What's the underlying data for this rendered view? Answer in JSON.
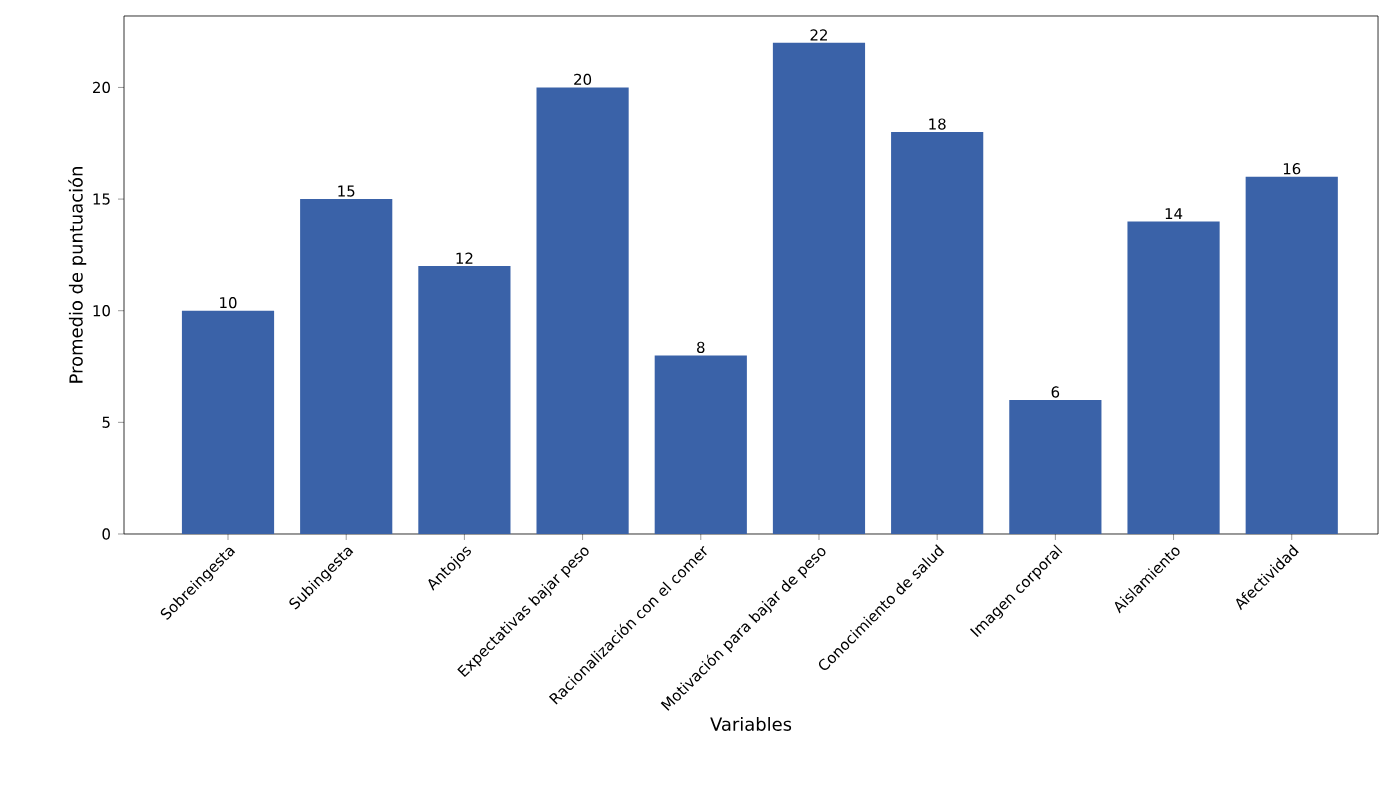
{
  "chart_data": {
    "type": "bar",
    "xlabel": "Variables",
    "ylabel": "Promedio de puntuación",
    "categories": [
      "Sobreingesta",
      "Subingesta",
      "Antojos",
      "Expectativas bajar peso",
      "Racionalización con el comer",
      "Motivación para bajar de peso",
      "Conocimiento de salud",
      "Imagen corporal",
      "Aislamiento",
      "Afectividad"
    ],
    "values": [
      10,
      15,
      12,
      20,
      8,
      22,
      18,
      6,
      14,
      16
    ],
    "color": "#3a62a8",
    "ylim": [
      0,
      23.2
    ],
    "yticks": [
      0,
      5,
      10,
      15,
      20
    ],
    "data_labels": true,
    "grid": false
  }
}
